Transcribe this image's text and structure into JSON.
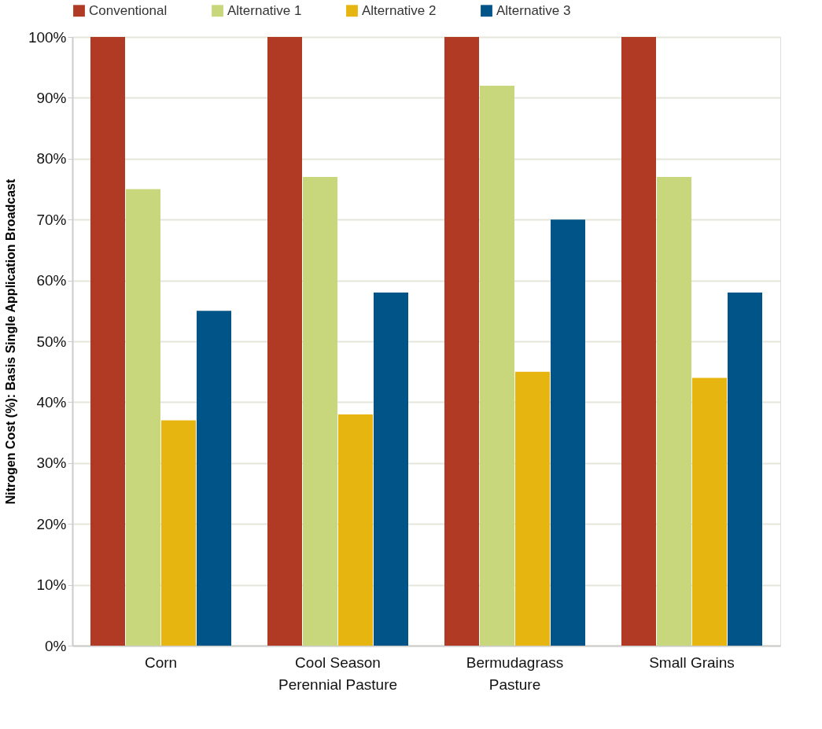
{
  "chart_data": {
    "type": "bar",
    "ylabel": "Nitrogen Cost (%): Basis Single Application Broadcast",
    "categories": [
      "Corn",
      "Cool Season\nPerennial Pasture",
      "Bermudagrass\nPasture",
      "Small Grains"
    ],
    "series": [
      {
        "name": "Conventional",
        "color": "#b03a24",
        "values": [
          100,
          100,
          100,
          100
        ]
      },
      {
        "name": "Alternative 1",
        "color": "#c8d67c",
        "values": [
          75,
          77,
          92,
          77
        ]
      },
      {
        "name": "Alternative 2",
        "color": "#e6b50f",
        "values": [
          37,
          38,
          45,
          44
        ]
      },
      {
        "name": "Alternative 3",
        "color": "#005487",
        "values": [
          55,
          58,
          70,
          58
        ]
      }
    ],
    "ylim": [
      0,
      100
    ],
    "yticks": [
      {
        "value": 0,
        "label": "0%"
      },
      {
        "value": 10,
        "label": "10%"
      },
      {
        "value": 20,
        "label": "20%"
      },
      {
        "value": 30,
        "label": "30%"
      },
      {
        "value": 40,
        "label": "40%"
      },
      {
        "value": 50,
        "label": "50%"
      },
      {
        "value": 60,
        "label": "60%"
      },
      {
        "value": 70,
        "label": "70%"
      },
      {
        "value": 80,
        "label": "80%"
      },
      {
        "value": 90,
        "label": "90%"
      },
      {
        "value": 100,
        "label": "100%"
      }
    ],
    "grid": "y",
    "legend": "top"
  }
}
